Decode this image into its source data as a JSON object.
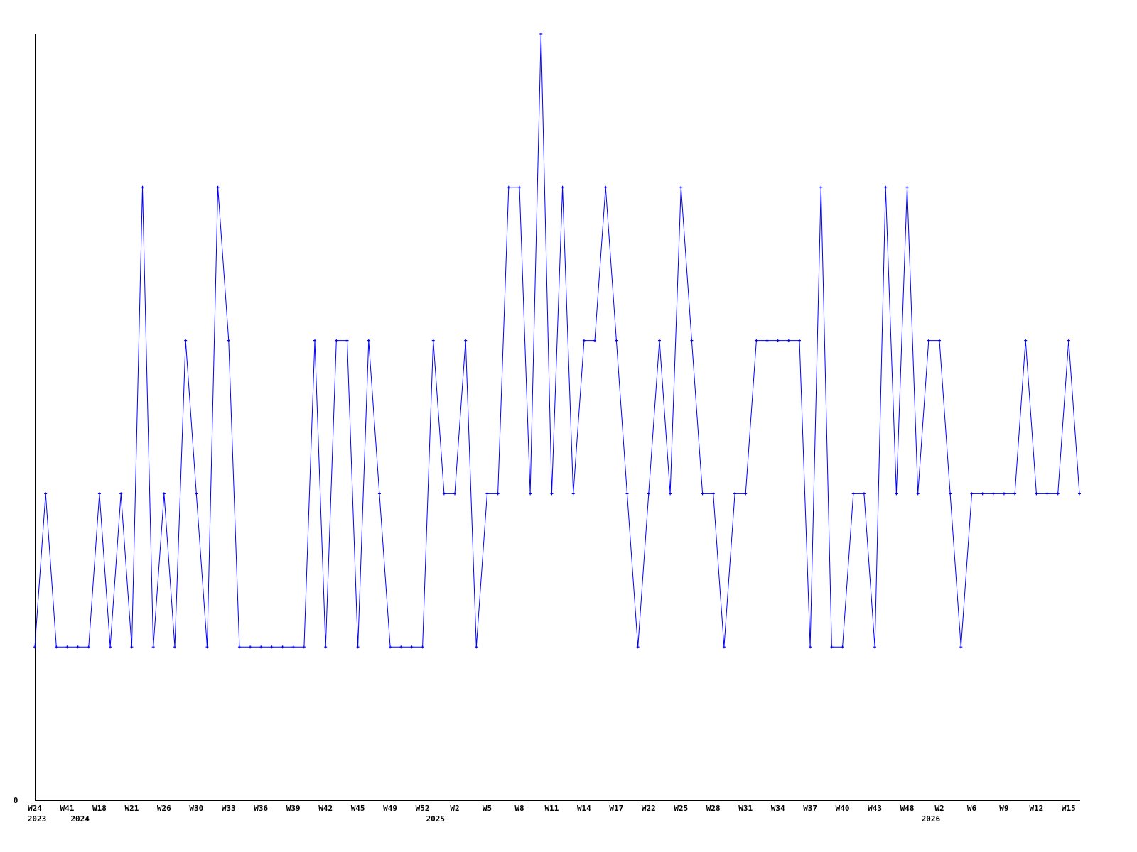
{
  "chart_data": {
    "type": "line",
    "title": "",
    "xlabel": "",
    "ylabel": "",
    "ylim": [
      0,
      5
    ],
    "y_tick_labels": [
      "0"
    ],
    "grid": false,
    "line_color": "#0000ff",
    "axis_color": "#000000",
    "values": [
      1,
      2,
      1,
      1,
      1,
      1,
      2,
      1,
      2,
      1,
      4,
      1,
      2,
      1,
      3,
      2,
      1,
      4,
      3,
      1,
      1,
      1,
      1,
      1,
      1,
      1,
      3,
      1,
      3,
      3,
      1,
      3,
      2,
      1,
      1,
      1,
      1,
      3,
      2,
      2,
      3,
      1,
      2,
      2,
      4,
      4,
      2,
      5,
      2,
      4,
      2,
      3,
      3,
      4,
      3,
      2,
      1,
      2,
      3,
      2,
      4,
      3,
      2,
      2,
      1,
      2,
      2,
      3,
      3,
      3,
      3,
      3,
      1,
      4,
      1,
      1,
      2,
      2,
      1,
      4,
      2,
      4,
      2,
      3,
      3,
      2,
      1,
      2,
      2,
      2,
      2,
      2,
      3,
      2,
      2,
      2,
      3,
      2
    ],
    "x_tick_every": 3,
    "x_tick_labels": [
      "W24",
      "W41",
      "W18",
      "W21",
      "W26",
      "W30",
      "W33",
      "W36",
      "W39",
      "W42",
      "W45",
      "W49",
      "W52",
      "W2",
      "W5",
      "W8",
      "W11",
      "W14",
      "W17",
      "W22",
      "W25",
      "W28",
      "W31",
      "W34",
      "W37",
      "W40",
      "W43",
      "W48",
      "W2",
      "W6",
      "W9",
      "W12",
      "W15"
    ],
    "year_labels": [
      {
        "label": "2023",
        "index": 0
      },
      {
        "label": "2024",
        "index": 4
      },
      {
        "label": "2025",
        "index": 37
      },
      {
        "label": "2026",
        "index": 83
      }
    ]
  }
}
